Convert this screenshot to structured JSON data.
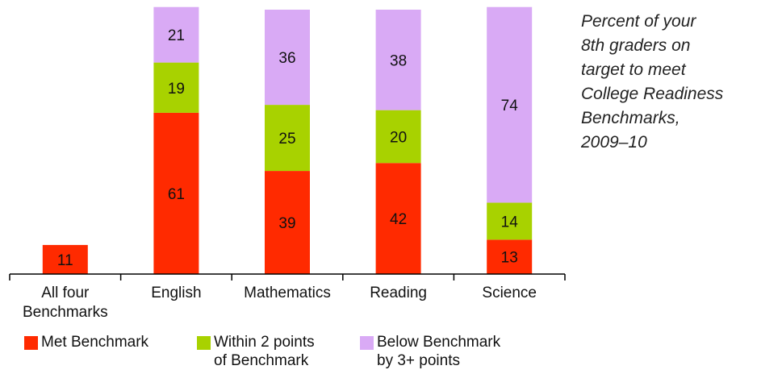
{
  "chart_data": {
    "type": "bar",
    "stacked": true,
    "categories": [
      "All four Benchmarks",
      "English",
      "Mathematics",
      "Reading",
      "Science"
    ],
    "category_lines": [
      [
        "All four",
        "Benchmarks"
      ],
      [
        "English"
      ],
      [
        "Mathematics"
      ],
      [
        "Reading"
      ],
      [
        "Science"
      ]
    ],
    "series": [
      {
        "name": "Met Benchmark",
        "color": "#ff2a00",
        "values": [
          11,
          61,
          39,
          42,
          13
        ]
      },
      {
        "name": "Within 2 points of Benchmark",
        "color": "#a8d200",
        "values": [
          null,
          19,
          25,
          20,
          14
        ]
      },
      {
        "name": "Below Benchmark by 3+ points",
        "color": "#d9aaf5",
        "values": [
          null,
          21,
          36,
          38,
          74
        ]
      }
    ],
    "ylim": [
      0,
      100
    ],
    "grid": false,
    "legend_position": "bottom"
  },
  "note": {
    "lines": [
      "Percent of your",
      "8th graders on",
      "target to meet",
      "College Readiness",
      "Benchmarks,",
      "2009–10"
    ]
  },
  "legend": [
    {
      "lines": [
        "Met Benchmark"
      ],
      "color": "#ff2a00"
    },
    {
      "lines": [
        "Within 2 points",
        "of Benchmark"
      ],
      "color": "#a8d200"
    },
    {
      "lines": [
        "Below Benchmark",
        "by 3+ points"
      ],
      "color": "#d9aaf5"
    }
  ]
}
